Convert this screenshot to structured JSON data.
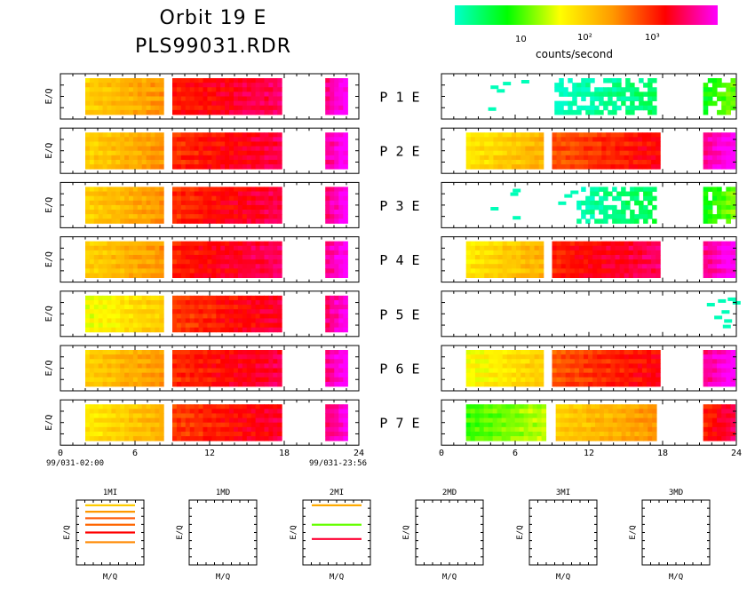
{
  "header": {
    "title_line1": "Orbit 19 E",
    "title_line2": "PLS99031.RDR"
  },
  "colorbar": {
    "label": "counts/second",
    "tick_labels": [
      "10",
      "10²",
      "10³"
    ],
    "colors": [
      "#00ffcc",
      "#00ff00",
      "#ffff00",
      "#ff9900",
      "#ff0000",
      "#ff00ff"
    ]
  },
  "chart_data": {
    "type": "heatmap",
    "panel_ylabel": "E/Q",
    "x_ticks": [
      "0",
      "6",
      "12",
      "18",
      "24"
    ],
    "xlim": [
      0,
      24
    ],
    "start_label": "99/031-02:00",
    "end_label": "99/031-23:56",
    "rows": [
      {
        "label": "P 1 E",
        "left": [
          {
            "t0": 2.0,
            "t1": 8.3,
            "level": 0.55
          },
          {
            "t0": 9.0,
            "t1": 17.8,
            "level": 0.82
          },
          {
            "t0": 21.3,
            "t1": 23.1,
            "level": 0.97
          }
        ],
        "right_dense": [
          {
            "t0": 9.2,
            "t1": 17.5,
            "level": 0.05
          },
          {
            "t0": 21.3,
            "t1": 23.9,
            "level": 0.25
          }
        ],
        "right_sparse": [
          [
            4.0,
            0.8
          ],
          [
            4.5,
            0.7
          ],
          [
            5.0,
            0.9
          ],
          [
            6.5,
            0.95
          ],
          [
            3.8,
            0.2
          ]
        ]
      },
      {
        "label": "P 2 E",
        "left": [
          {
            "t0": 2.0,
            "t1": 8.3,
            "level": 0.55
          },
          {
            "t0": 9.0,
            "t1": 17.8,
            "level": 0.8
          },
          {
            "t0": 21.3,
            "t1": 23.1,
            "level": 0.98
          }
        ],
        "right_dense": [
          {
            "t0": 2.0,
            "t1": 8.3,
            "level": 0.5
          },
          {
            "t0": 9.0,
            "t1": 17.8,
            "level": 0.75
          },
          {
            "t0": 21.3,
            "t1": 23.9,
            "level": 0.97
          }
        ],
        "right_sparse": []
      },
      {
        "label": "P 3 E",
        "left": [
          {
            "t0": 2.0,
            "t1": 8.3,
            "level": 0.55
          },
          {
            "t0": 9.0,
            "t1": 17.8,
            "level": 0.8
          },
          {
            "t0": 21.3,
            "t1": 23.1,
            "level": 0.97
          }
        ],
        "right_dense": [
          {
            "t0": 11.0,
            "t1": 17.5,
            "level": 0.08
          },
          {
            "t0": 21.3,
            "t1": 23.9,
            "level": 0.25
          }
        ],
        "right_sparse": [
          [
            5.8,
            0.95
          ],
          [
            5.6,
            0.85
          ],
          [
            4.0,
            0.45
          ],
          [
            5.8,
            0.2
          ],
          [
            9.5,
            0.6
          ],
          [
            10.0,
            0.8
          ],
          [
            10.5,
            0.9
          ]
        ]
      },
      {
        "label": "P 4 E",
        "left": [
          {
            "t0": 2.0,
            "t1": 8.3,
            "level": 0.55
          },
          {
            "t0": 9.0,
            "t1": 17.8,
            "level": 0.82
          },
          {
            "t0": 21.3,
            "t1": 23.1,
            "level": 0.97
          }
        ],
        "right_dense": [
          {
            "t0": 2.0,
            "t1": 8.3,
            "level": 0.5
          },
          {
            "t0": 9.0,
            "t1": 17.8,
            "level": 0.82
          },
          {
            "t0": 21.3,
            "t1": 23.9,
            "level": 0.97
          }
        ],
        "right_sparse": []
      },
      {
        "label": "P 5 E",
        "left": [
          {
            "t0": 2.0,
            "t1": 8.3,
            "level": 0.45
          },
          {
            "t0": 9.0,
            "t1": 17.8,
            "level": 0.78
          },
          {
            "t0": 21.3,
            "t1": 23.1,
            "level": 0.95
          }
        ],
        "right_dense": [],
        "right_sparse": [
          [
            21.6,
            0.8
          ],
          [
            22.5,
            0.9
          ],
          [
            23.3,
            0.95
          ],
          [
            23.7,
            0.85
          ],
          [
            22.8,
            0.6
          ],
          [
            22.2,
            0.45
          ],
          [
            23.0,
            0.35
          ],
          [
            22.9,
            0.2
          ]
        ]
      },
      {
        "label": "P 6 E",
        "left": [
          {
            "t0": 2.0,
            "t1": 8.3,
            "level": 0.55
          },
          {
            "t0": 9.0,
            "t1": 17.8,
            "level": 0.8
          },
          {
            "t0": 21.3,
            "t1": 23.1,
            "level": 0.97
          }
        ],
        "right_dense": [
          {
            "t0": 2.0,
            "t1": 8.3,
            "level": 0.45
          },
          {
            "t0": 9.0,
            "t1": 17.8,
            "level": 0.75
          },
          {
            "t0": 21.3,
            "t1": 23.9,
            "level": 0.97
          }
        ],
        "right_sparse": []
      },
      {
        "label": "P 7 E",
        "left": [
          {
            "t0": 2.0,
            "t1": 8.3,
            "level": 0.5
          },
          {
            "t0": 9.0,
            "t1": 17.8,
            "level": 0.78
          },
          {
            "t0": 21.3,
            "t1": 23.1,
            "level": 0.95
          }
        ],
        "right_dense": [
          {
            "t0": 2.0,
            "t1": 8.5,
            "level": 0.3
          },
          {
            "t0": 9.3,
            "t1": 17.5,
            "level": 0.55
          },
          {
            "t0": 21.3,
            "t1": 23.9,
            "level": 0.82
          }
        ],
        "right_sparse": []
      }
    ],
    "small_panels": [
      {
        "title": "1MI",
        "xlabel": "M/Q",
        "ylabel": "E/Q",
        "lines": [
          {
            "y": 0.92,
            "color": "#ffcc00"
          },
          {
            "y": 0.82,
            "color": "#ff9900"
          },
          {
            "y": 0.72,
            "color": "#ff5500"
          },
          {
            "y": 0.62,
            "color": "#ff6600"
          },
          {
            "y": 0.5,
            "color": "#ff0000"
          },
          {
            "y": 0.35,
            "color": "#ff8800"
          }
        ]
      },
      {
        "title": "1MD",
        "xlabel": "M/Q",
        "ylabel": "E/Q",
        "lines": []
      },
      {
        "title": "2MI",
        "xlabel": "M/Q",
        "ylabel": "E/Q",
        "lines": [
          {
            "y": 0.92,
            "color": "#ffaa00"
          },
          {
            "y": 0.62,
            "color": "#66ff00"
          },
          {
            "y": 0.4,
            "color": "#ff0033"
          }
        ]
      },
      {
        "title": "2MD",
        "xlabel": "M/Q",
        "ylabel": "E/Q",
        "lines": []
      },
      {
        "title": "3MI",
        "xlabel": "M/Q",
        "ylabel": "E/Q",
        "lines": []
      },
      {
        "title": "3MD",
        "xlabel": "M/Q",
        "ylabel": "E/Q",
        "lines": []
      }
    ]
  }
}
